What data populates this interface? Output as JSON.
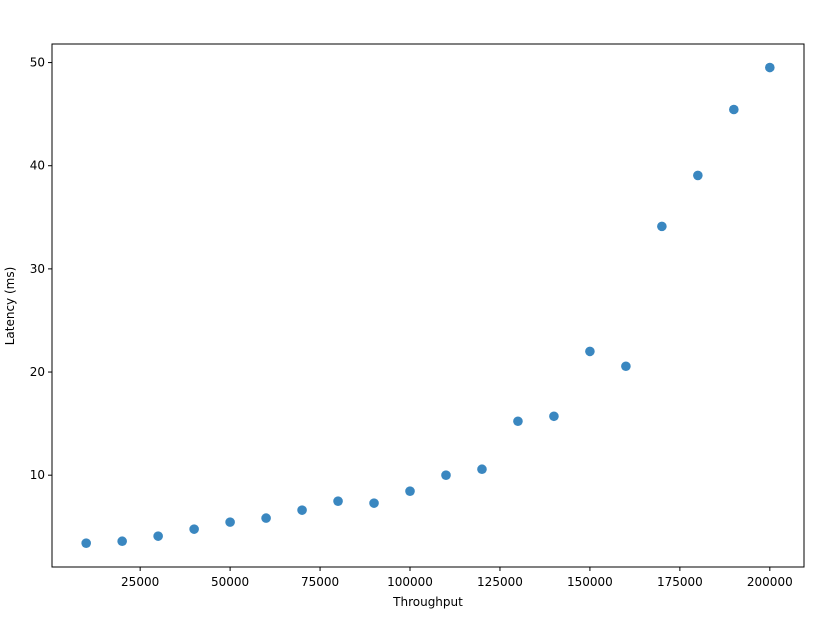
{
  "chart_data": {
    "type": "scatter",
    "xlabel": "Throughput",
    "ylabel": "Latency (ms)",
    "x": [
      10000,
      20000,
      30000,
      40000,
      50000,
      60000,
      70000,
      80000,
      90000,
      100000,
      110000,
      120000,
      130000,
      140000,
      150000,
      160000,
      170000,
      180000,
      190000,
      200000
    ],
    "values": [
      3.41,
      3.6,
      4.09,
      4.77,
      5.45,
      5.84,
      6.61,
      7.48,
      7.29,
      8.45,
      10.0,
      10.58,
      15.23,
      15.71,
      22.0,
      20.56,
      34.12,
      39.06,
      45.45,
      49.52
    ],
    "color": "#3a87c0",
    "xlim": [
      500,
      209500
    ],
    "xticks": [
      25000,
      50000,
      75000,
      100000,
      125000,
      150000,
      175000,
      200000
    ],
    "ylim": [
      1.1,
      51.8
    ],
    "yticks": [
      10,
      20,
      30,
      40,
      50
    ],
    "grid": false
  }
}
